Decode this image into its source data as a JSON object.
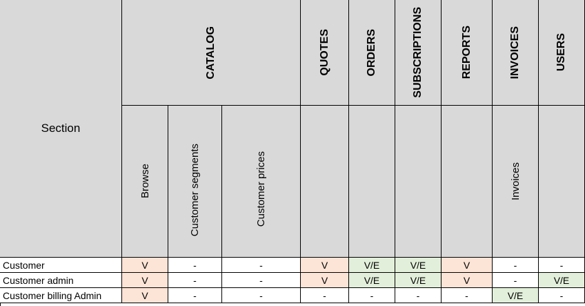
{
  "header": {
    "section_label": "Section",
    "groups": [
      {
        "label": "CATALOG"
      },
      {
        "label": "QUOTES"
      },
      {
        "label": "ORDERS"
      },
      {
        "label": "SUBSCRIPTIONS"
      },
      {
        "label": "REPORTS"
      },
      {
        "label": "INVOICES"
      },
      {
        "label": "USERS"
      }
    ],
    "subcolumns": [
      {
        "label": "Browse"
      },
      {
        "label": "Customer segments"
      },
      {
        "label": "Customer prices"
      },
      {
        "label": ""
      },
      {
        "label": ""
      },
      {
        "label": ""
      },
      {
        "label": ""
      },
      {
        "label": "Invoices"
      },
      {
        "label": ""
      }
    ]
  },
  "rows": [
    {
      "label": "Customer",
      "values": [
        "V",
        "-",
        "-",
        "V",
        "V/E",
        "V/E",
        "V",
        "-",
        "-"
      ]
    },
    {
      "label": "Customer admin",
      "values": [
        "V",
        "-",
        "-",
        "V",
        "V/E",
        "V/E",
        "V",
        "-",
        "V/E"
      ]
    },
    {
      "label": "Customer billing Admin",
      "values": [
        "V",
        "-",
        "-",
        "-",
        "-",
        "-",
        "-",
        "V/E",
        "-"
      ]
    }
  ],
  "colors": {
    "header_gray": "#d9d9d9",
    "view_peach": "#fce4d6",
    "edit_green": "#e2efda"
  }
}
